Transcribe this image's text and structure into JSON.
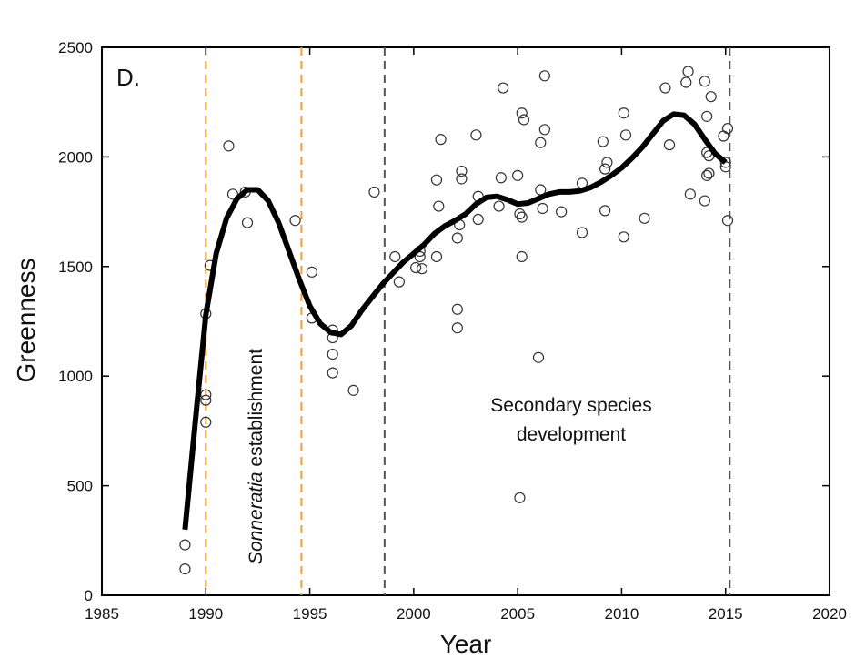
{
  "chart_data": {
    "type": "scatter",
    "panel_label": "D.",
    "xlabel": "Year",
    "ylabel": "Greenness",
    "xlim": [
      1985,
      2020
    ],
    "ylim": [
      0,
      2500
    ],
    "xticks": [
      1985,
      1990,
      1995,
      2000,
      2005,
      2010,
      2015,
      2020
    ],
    "yticks": [
      0,
      500,
      1000,
      1500,
      2000,
      2500
    ],
    "grid": false,
    "annotations": {
      "establishment_italic": "Sonneratia",
      "establishment_rest": " establishment",
      "secondary_line1": "Secondary species",
      "secondary_line2": "development"
    },
    "vlines": [
      {
        "x": 1990.0,
        "color": "#f0a030",
        "style": "dashed"
      },
      {
        "x": 1994.6,
        "color": "#f0a030",
        "style": "dashed"
      },
      {
        "x": 1998.6,
        "color": "#555555",
        "style": "dashed"
      },
      {
        "x": 2015.2,
        "color": "#555555",
        "style": "dashed"
      }
    ],
    "points": [
      [
        1989.0,
        230
      ],
      [
        1989.0,
        120
      ],
      [
        1990.0,
        1285
      ],
      [
        1990.2,
        1505
      ],
      [
        1990.0,
        915
      ],
      [
        1990.0,
        890
      ],
      [
        1990.0,
        790
      ],
      [
        1991.1,
        2050
      ],
      [
        1991.3,
        1830
      ],
      [
        1991.9,
        1840
      ],
      [
        1992.0,
        1700
      ],
      [
        1994.3,
        1710
      ],
      [
        1995.1,
        1475
      ],
      [
        1995.1,
        1265
      ],
      [
        1996.1,
        1210
      ],
      [
        1996.1,
        1175
      ],
      [
        1996.1,
        1100
      ],
      [
        1996.1,
        1015
      ],
      [
        1997.1,
        935
      ],
      [
        1998.1,
        1840
      ],
      [
        1999.1,
        1545
      ],
      [
        1999.3,
        1430
      ],
      [
        2000.1,
        1495
      ],
      [
        2000.3,
        1545
      ],
      [
        2000.3,
        1570
      ],
      [
        2000.4,
        1490
      ],
      [
        2001.1,
        1895
      ],
      [
        2001.2,
        1775
      ],
      [
        2001.3,
        2080
      ],
      [
        2001.1,
        1545
      ],
      [
        2002.1,
        1630
      ],
      [
        2002.1,
        1305
      ],
      [
        2002.1,
        1220
      ],
      [
        2002.2,
        1690
      ],
      [
        2002.3,
        1935
      ],
      [
        2002.3,
        1900
      ],
      [
        2003.0,
        2100
      ],
      [
        2003.1,
        1820
      ],
      [
        2003.1,
        1715
      ],
      [
        2004.1,
        1775
      ],
      [
        2004.2,
        1905
      ],
      [
        2004.3,
        2315
      ],
      [
        2005.0,
        1915
      ],
      [
        2005.1,
        1740
      ],
      [
        2005.2,
        1725
      ],
      [
        2005.2,
        2200
      ],
      [
        2005.3,
        2170
      ],
      [
        2005.2,
        1545
      ],
      [
        2005.1,
        445
      ],
      [
        2006.1,
        1850
      ],
      [
        2006.1,
        2065
      ],
      [
        2006.2,
        1765
      ],
      [
        2006.3,
        2125
      ],
      [
        2006.3,
        2370
      ],
      [
        2006.0,
        1085
      ],
      [
        2007.1,
        1750
      ],
      [
        2008.1,
        1880
      ],
      [
        2008.1,
        1655
      ],
      [
        2009.1,
        2070
      ],
      [
        2009.2,
        1755
      ],
      [
        2009.3,
        1975
      ],
      [
        2009.2,
        1945
      ],
      [
        2010.1,
        2200
      ],
      [
        2010.2,
        2100
      ],
      [
        2010.1,
        1635
      ],
      [
        2011.1,
        1720
      ],
      [
        2012.1,
        2315
      ],
      [
        2012.3,
        2055
      ],
      [
        2013.1,
        2340
      ],
      [
        2013.2,
        2390
      ],
      [
        2013.3,
        1830
      ],
      [
        2014.0,
        1800
      ],
      [
        2014.0,
        2345
      ],
      [
        2014.1,
        2185
      ],
      [
        2014.1,
        2020
      ],
      [
        2014.1,
        1915
      ],
      [
        2014.2,
        1925
      ],
      [
        2014.2,
        2005
      ],
      [
        2014.3,
        2275
      ],
      [
        2014.9,
        2095
      ],
      [
        2015.0,
        1975
      ],
      [
        2015.0,
        1955
      ],
      [
        2015.1,
        2130
      ],
      [
        2015.1,
        1710
      ]
    ],
    "smooth_curve": [
      [
        1989.0,
        300
      ],
      [
        1989.5,
        800
      ],
      [
        1990.0,
        1280
      ],
      [
        1990.5,
        1560
      ],
      [
        1991.0,
        1720
      ],
      [
        1991.5,
        1810
      ],
      [
        1992.0,
        1850
      ],
      [
        1992.5,
        1850
      ],
      [
        1993.0,
        1800
      ],
      [
        1993.5,
        1700
      ],
      [
        1994.0,
        1570
      ],
      [
        1994.5,
        1440
      ],
      [
        1995.0,
        1320
      ],
      [
        1995.5,
        1240
      ],
      [
        1996.0,
        1200
      ],
      [
        1996.5,
        1190
      ],
      [
        1997.0,
        1230
      ],
      [
        1997.5,
        1300
      ],
      [
        1998.0,
        1360
      ],
      [
        1998.5,
        1420
      ],
      [
        1999.0,
        1470
      ],
      [
        1999.5,
        1520
      ],
      [
        2000.0,
        1560
      ],
      [
        2000.5,
        1600
      ],
      [
        2001.0,
        1650
      ],
      [
        2001.5,
        1685
      ],
      [
        2002.0,
        1710
      ],
      [
        2002.5,
        1740
      ],
      [
        2003.0,
        1785
      ],
      [
        2003.5,
        1815
      ],
      [
        2004.0,
        1820
      ],
      [
        2004.5,
        1805
      ],
      [
        2005.0,
        1785
      ],
      [
        2005.5,
        1790
      ],
      [
        2006.0,
        1810
      ],
      [
        2006.5,
        1830
      ],
      [
        2007.0,
        1840
      ],
      [
        2007.5,
        1840
      ],
      [
        2008.0,
        1845
      ],
      [
        2008.5,
        1860
      ],
      [
        2009.0,
        1885
      ],
      [
        2009.5,
        1915
      ],
      [
        2010.0,
        1950
      ],
      [
        2010.5,
        1995
      ],
      [
        2011.0,
        2045
      ],
      [
        2011.5,
        2105
      ],
      [
        2012.0,
        2165
      ],
      [
        2012.5,
        2195
      ],
      [
        2013.0,
        2190
      ],
      [
        2013.5,
        2150
      ],
      [
        2014.0,
        2080
      ],
      [
        2014.5,
        2015
      ],
      [
        2015.0,
        1975
      ]
    ]
  }
}
